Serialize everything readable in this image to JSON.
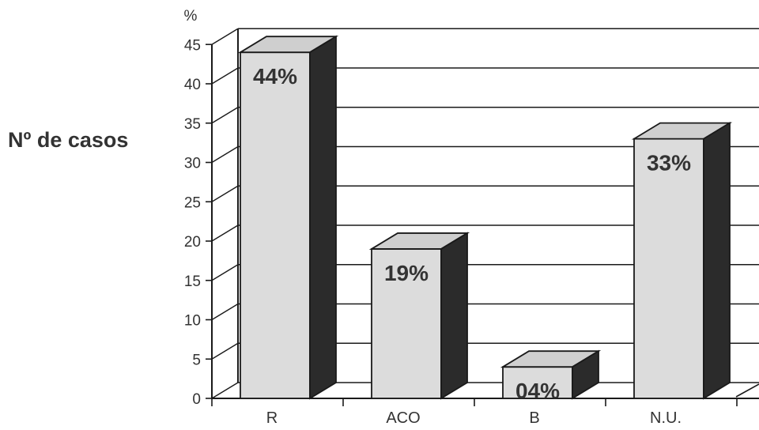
{
  "chart_data": {
    "type": "bar",
    "three_d": true,
    "categories": [
      "R",
      "ACO",
      "B",
      "N.U."
    ],
    "values": [
      44,
      19,
      4,
      33
    ],
    "data_labels": [
      "44%",
      "19%",
      "04%",
      "33%"
    ],
    "unit_label": "%",
    "ylabel": "Nº de casos",
    "xlabel": "",
    "title": "",
    "ylim": [
      0,
      45
    ],
    "yticks": [
      0,
      5,
      10,
      15,
      20,
      25,
      30,
      35,
      40,
      45
    ],
    "grid": true,
    "legend": "none"
  },
  "colors": {
    "bar_front": "#dcdcdc",
    "bar_top": "#cfcfcf",
    "bar_side": "#2b2b2b",
    "axis": "#1a1a1a",
    "text": "#333333",
    "background": "#ffffff"
  }
}
